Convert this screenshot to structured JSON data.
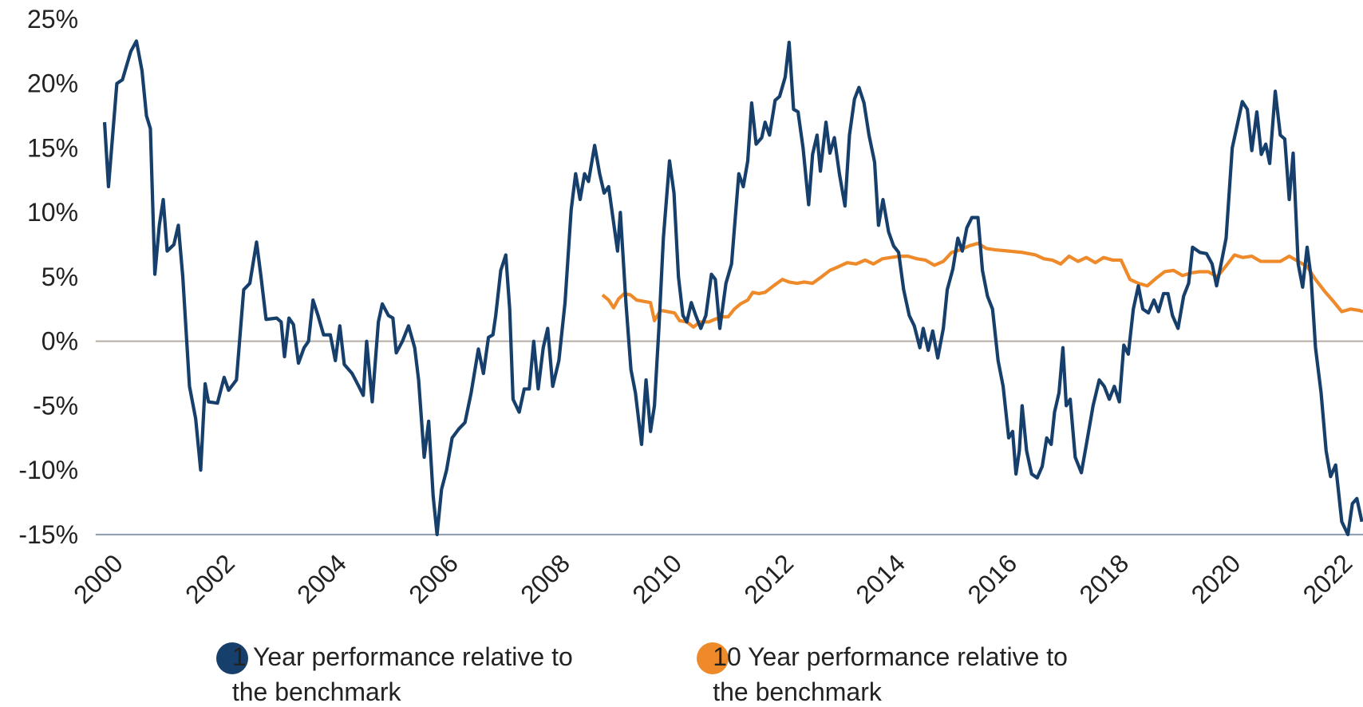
{
  "chart_data": {
    "type": "line",
    "xlim": [
      1999.92,
      2022.6
    ],
    "xticks": [
      2000,
      2002,
      2004,
      2006,
      2008,
      2010,
      2012,
      2014,
      2016,
      2018,
      2020,
      2022
    ],
    "ylim": [
      -15,
      25
    ],
    "yticks": [
      {
        "value": -15,
        "label": "-15%"
      },
      {
        "value": -10,
        "label": "-10%"
      },
      {
        "value": -5,
        "label": "-5%"
      },
      {
        "value": 0,
        "label": "0%"
      },
      {
        "value": 5,
        "label": "5%"
      },
      {
        "value": 10,
        "label": "10%"
      },
      {
        "value": 15,
        "label": "15%"
      },
      {
        "value": 20,
        "label": "20%"
      },
      {
        "value": 25,
        "label": "25%"
      }
    ],
    "grid": false,
    "legend": "bottom",
    "series": [
      {
        "name": "1 Year performance relative to the benchmark",
        "color": "#173f6b",
        "x": [
          2000.08,
          2000.15,
          2000.3,
          2000.4,
          2000.55,
          2000.65,
          2000.75,
          2000.83,
          2000.9,
          2000.98,
          2001.06,
          2001.13,
          2001.2,
          2001.32,
          2001.4,
          2001.48,
          2001.6,
          2001.71,
          2001.8,
          2001.88,
          2001.94,
          2002.1,
          2002.22,
          2002.3,
          2002.44,
          2002.57,
          2002.68,
          2002.8,
          2002.88,
          2002.97,
          2003.16,
          2003.24,
          2003.3,
          2003.38,
          2003.46,
          2003.55,
          2003.65,
          2003.73,
          2003.81,
          2003.9,
          2004.0,
          2004.12,
          2004.21,
          2004.29,
          2004.37,
          2004.51,
          2004.63,
          2004.71,
          2004.77,
          2004.87,
          2004.98,
          2005.05,
          2005.16,
          2005.24,
          2005.3,
          2005.41,
          2005.52,
          2005.63,
          2005.7,
          2005.8,
          2005.88,
          2005.96,
          2006.03,
          2006.11,
          2006.2,
          2006.3,
          2006.42,
          2006.53,
          2006.64,
          2006.77,
          2006.86,
          2006.95,
          2007.03,
          2007.08,
          2007.17,
          2007.26,
          2007.33,
          2007.39,
          2007.5,
          2007.59,
          2007.68,
          2007.76,
          2007.84,
          2007.93,
          2008.01,
          2008.1,
          2008.21,
          2008.32,
          2008.43,
          2008.51,
          2008.59,
          2008.67,
          2008.74,
          2008.85,
          2008.94,
          2009.02,
          2009.1,
          2009.18,
          2009.26,
          2009.31,
          2009.41,
          2009.5,
          2009.58,
          2009.69,
          2009.77,
          2009.85,
          2009.92,
          2010.0,
          2010.08,
          2010.19,
          2010.27,
          2010.35,
          2010.43,
          2010.5,
          2010.58,
          2010.66,
          2010.75,
          2010.84,
          2010.94,
          2011.01,
          2011.09,
          2011.2,
          2011.3,
          2011.43,
          2011.51,
          2011.59,
          2011.66,
          2011.74,
          2011.84,
          2011.9,
          2011.98,
          2012.08,
          2012.16,
          2012.26,
          2012.33,
          2012.41,
          2012.49,
          2012.58,
          2012.68,
          2012.75,
          2012.83,
          2012.89,
          2012.99,
          2013.06,
          2013.14,
          2013.23,
          2013.33,
          2013.41,
          2013.5,
          2013.58,
          2013.67,
          2013.76,
          2013.86,
          2013.93,
          2014.01,
          2014.11,
          2014.2,
          2014.29,
          2014.38,
          2014.48,
          2014.57,
          2014.67,
          2014.73,
          2014.82,
          2014.9,
          2014.99,
          2015.09,
          2015.16,
          2015.26,
          2015.35,
          2015.43,
          2015.51,
          2015.6,
          2015.71,
          2015.79,
          2015.88,
          2015.97,
          2016.07,
          2016.16,
          2016.26,
          2016.33,
          2016.39,
          2016.45,
          2016.5,
          2016.58,
          2016.67,
          2016.77,
          2016.86,
          2016.94,
          2017.02,
          2017.08,
          2017.16,
          2017.23,
          2017.29,
          2017.36,
          2017.45,
          2017.56,
          2017.65,
          2017.77,
          2017.88,
          2017.97,
          2018.06,
          2018.15,
          2018.24,
          2018.32,
          2018.4,
          2018.49,
          2018.58,
          2018.66,
          2018.76,
          2018.86,
          2018.94,
          2019.03,
          2019.11,
          2019.19,
          2019.29,
          2019.39,
          2019.48,
          2019.55,
          2019.68,
          2019.8,
          2019.9,
          2019.98,
          2020.06,
          2020.15,
          2020.26,
          2020.36,
          2020.44,
          2020.53,
          2020.61,
          2020.7,
          2020.78,
          2020.86,
          2020.93,
          2021.03,
          2021.12,
          2021.2,
          2021.28,
          2021.35,
          2021.44,
          2021.52,
          2021.6,
          2021.67,
          2021.75,
          2021.85,
          2021.94,
          2022.02,
          2022.11,
          2022.22,
          2022.33,
          2022.41,
          2022.49,
          2022.58
        ],
        "values": [
          17,
          12,
          20,
          20.3,
          22.5,
          23.3,
          21,
          17.5,
          16.5,
          5.2,
          9,
          11,
          7,
          7.5,
          9,
          5,
          -3.5,
          -6,
          -10,
          -3.3,
          -4.7,
          -4.8,
          -2.8,
          -3.8,
          -3,
          4,
          4.5,
          7.7,
          5,
          1.7,
          1.8,
          1.5,
          -1.2,
          1.8,
          1.3,
          -1.7,
          -0.5,
          0,
          3.2,
          2,
          0.5,
          0.5,
          -1.5,
          1.2,
          -1.8,
          -2.5,
          -3.5,
          -4.2,
          0,
          -4.7,
          1.5,
          2.9,
          2,
          1.8,
          -0.9,
          0,
          1.2,
          -0.5,
          -3,
          -9,
          -6.2,
          -12,
          -15,
          -11.5,
          -10,
          -7.5,
          -6.8,
          -6.3,
          -4,
          -0.6,
          -2.5,
          0.3,
          0.5,
          2,
          5.5,
          6.7,
          2.5,
          -4.5,
          -5.5,
          -3.7,
          -3.7,
          0,
          -3.7,
          -0.5,
          1,
          -3.5,
          -1.5,
          3,
          10.2,
          13,
          11,
          13,
          12.4,
          15.2,
          13,
          11.5,
          12,
          9.5,
          7,
          10,
          3,
          -2.2,
          -4,
          -8,
          -3,
          -7,
          -5,
          1,
          8,
          14,
          11.5,
          5,
          2,
          1.5,
          3,
          2,
          1,
          2,
          5.2,
          4.8,
          1,
          4.5,
          6,
          13,
          12,
          14,
          18.5,
          15.3,
          15.8,
          17,
          16,
          18.7,
          19,
          20.5,
          23.2,
          18,
          17.8,
          15,
          10.6,
          14.5,
          16,
          13.2,
          17,
          14.6,
          15.8,
          13,
          10.5,
          16,
          18.8,
          19.7,
          18.5,
          16,
          13.9,
          9,
          11,
          8.5,
          7.4,
          6.9,
          4,
          2,
          1.2,
          -0.5,
          1,
          -0.7,
          0.8,
          -1.3,
          1,
          4,
          5.6,
          8,
          7,
          8.8,
          9.6,
          9.6,
          5.5,
          3.5,
          2.5,
          -1.5,
          -3.5,
          -7.5,
          -7,
          -10.3,
          -8.5,
          -5,
          -8.5,
          -10.3,
          -10.6,
          -9.7,
          -7.5,
          -8,
          -5.5,
          -4,
          -0.5,
          -5,
          -4.5,
          -9,
          -10.2,
          -8,
          -5,
          -3,
          -3.5,
          -4.5,
          -3.5,
          -4.7,
          -0.3,
          -1,
          2.5,
          4.3,
          2.5,
          2.2,
          3.2,
          2.3,
          3.7,
          3.7,
          2,
          1,
          3.5,
          4.5,
          7.3,
          6.9,
          6.8,
          6,
          4.3,
          6,
          8,
          15,
          17,
          18.6,
          18,
          14.8,
          17.8,
          14.5,
          15.3,
          13.8,
          19.4,
          16,
          15.7,
          11,
          14.6,
          6,
          4.2,
          7.3,
          5,
          -0.5,
          -4,
          -8.5,
          -10.5,
          -9.6,
          -14,
          -15,
          -12.6,
          -12.2,
          -14
        ]
      },
      {
        "name": "10 Year performance relative to the benchmark",
        "color": "#ee8a2a",
        "x": [
          2008.99,
          2009.1,
          2009.19,
          2009.28,
          2009.38,
          2009.49,
          2009.6,
          2009.72,
          2009.85,
          2009.92,
          2010.03,
          2010.16,
          2010.28,
          2010.37,
          2010.5,
          2010.62,
          2010.73,
          2010.89,
          2011.0,
          2011.12,
          2011.24,
          2011.35,
          2011.46,
          2011.59,
          2011.68,
          2011.79,
          2011.9,
          2012.05,
          2012.21,
          2012.33,
          2012.47,
          2012.6,
          2012.75,
          2012.91,
          2013.06,
          2013.22,
          2013.37,
          2013.53,
          2013.69,
          2013.84,
          2014.0,
          2014.15,
          2014.31,
          2014.46,
          2014.62,
          2014.77,
          2014.93,
          2015.09,
          2015.24,
          2015.4,
          2015.55,
          2015.71,
          2015.86,
          2016.02,
          2016.26,
          2016.5,
          2016.74,
          2016.89,
          2017.04,
          2017.19,
          2017.34,
          2017.5,
          2017.65,
          2017.81,
          2017.96,
          2018.12,
          2018.27,
          2018.43,
          2018.58,
          2018.74,
          2018.9,
          2019.05,
          2019.21,
          2019.37,
          2019.52,
          2019.68,
          2019.83,
          2019.99,
          2020.14,
          2020.3,
          2020.45,
          2020.61,
          2020.77,
          2020.93,
          2021.12,
          2021.28,
          2021.44,
          2021.6,
          2021.75,
          2021.91,
          2022.07,
          2022.22,
          2022.38,
          2022.53,
          2022.6
        ],
        "values": [
          3.6,
          3.2,
          2.6,
          3.3,
          3.7,
          3.6,
          3.2,
          3.1,
          3,
          1.6,
          2.4,
          2.3,
          2.2,
          1.6,
          1.5,
          1.1,
          1.5,
          1.5,
          1.7,
          1.9,
          1.9,
          2.5,
          2.9,
          3.2,
          3.8,
          3.7,
          3.8,
          4.3,
          4.8,
          4.6,
          4.5,
          4.6,
          4.5,
          5,
          5.5,
          5.8,
          6.1,
          6,
          6.3,
          6,
          6.4,
          6.5,
          6.6,
          6.6,
          6.4,
          6.3,
          5.9,
          6.2,
          6.9,
          7.1,
          7.4,
          7.6,
          7.2,
          7.1,
          7,
          6.9,
          6.7,
          6.4,
          6.3,
          6,
          6.6,
          6.2,
          6.5,
          6.1,
          6.5,
          6.3,
          6.3,
          4.8,
          4.5,
          4.3,
          4.9,
          5.4,
          5.5,
          5.1,
          5.3,
          5.4,
          5.4,
          5,
          5.8,
          6.7,
          6.5,
          6.6,
          6.2,
          6.2,
          6.2,
          6.6,
          6.2,
          5.8,
          4.8,
          3.9,
          3.1,
          2.3,
          2.5,
          2.4,
          2.3
        ]
      }
    ]
  }
}
